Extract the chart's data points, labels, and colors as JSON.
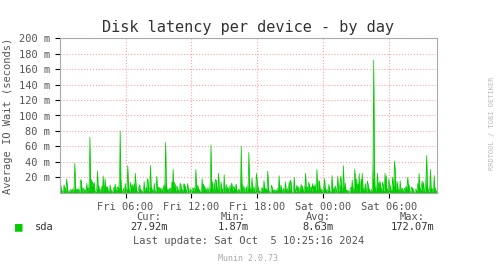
{
  "title": "Disk latency per device - by day",
  "ylabel": "Average IO Wait (seconds)",
  "line_color": "#00cc00",
  "fill_color": "#00cc00",
  "bg_color": "#ffffff",
  "plot_bg_color": "#ffffff",
  "grid_color": "#ff9999",
  "grid_style": "dotted",
  "ylim": [
    0,
    0.2
  ],
  "yticks": [
    0.02,
    0.04,
    0.06,
    0.08,
    0.1,
    0.12,
    0.14,
    0.16,
    0.18,
    0.2
  ],
  "ytick_labels": [
    "20 m",
    "40 m",
    "60 m",
    "80 m",
    "100 m",
    "120 m",
    "140 m",
    "160 m",
    "180 m",
    "200 m"
  ],
  "xtick_labels": [
    "Fri 06:00",
    "Fri 12:00",
    "Fri 18:00",
    "Sat 00:00",
    "Sat 06:00"
  ],
  "legend_label": "sda",
  "cur": "27.92m",
  "min": "1.87m",
  "avg": "8.63m",
  "max": "172.07m",
  "last_update": "Last update: Sat Oct  5 10:25:16 2024",
  "munin_version": "Munin 2.0.73",
  "watermark": "RRDTOOL / TOBI OETIKER",
  "title_fontsize": 11,
  "axis_fontsize": 7.5,
  "tick_fontsize": 7.5,
  "num_points": 600
}
